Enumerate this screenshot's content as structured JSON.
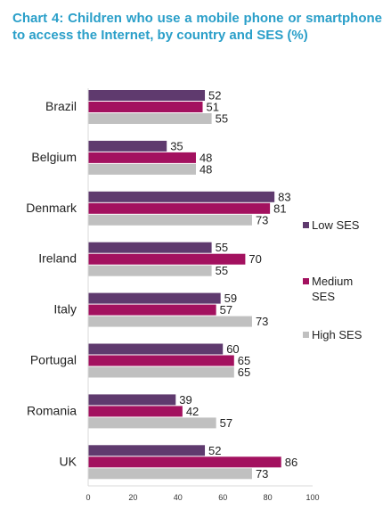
{
  "title": "Chart 4: Children who use a mobile phone or smartphone to access the Internet, by country and SES (%)",
  "chart_data": {
    "type": "bar",
    "orientation": "horizontal",
    "categories": [
      "Brazil",
      "Belgium",
      "Denmark",
      "Ireland",
      "Italy",
      "Portugal",
      "Romania",
      "UK"
    ],
    "series": [
      {
        "name": "Low SES",
        "values": [
          52,
          35,
          83,
          55,
          59,
          60,
          39,
          52
        ],
        "color": "#5f3a6e"
      },
      {
        "name": "Medium\nSES",
        "values": [
          51,
          48,
          81,
          70,
          57,
          65,
          42,
          86
        ],
        "color": "#a3115f"
      },
      {
        "name": "High SES",
        "values": [
          55,
          48,
          73,
          55,
          73,
          65,
          57,
          73
        ],
        "color": "#c0c0c0"
      }
    ],
    "xlim": [
      0,
      100
    ],
    "xticks": [
      0,
      20,
      40,
      60,
      80,
      100
    ],
    "legend_position": "right",
    "grid": false,
    "data_labels": true
  }
}
